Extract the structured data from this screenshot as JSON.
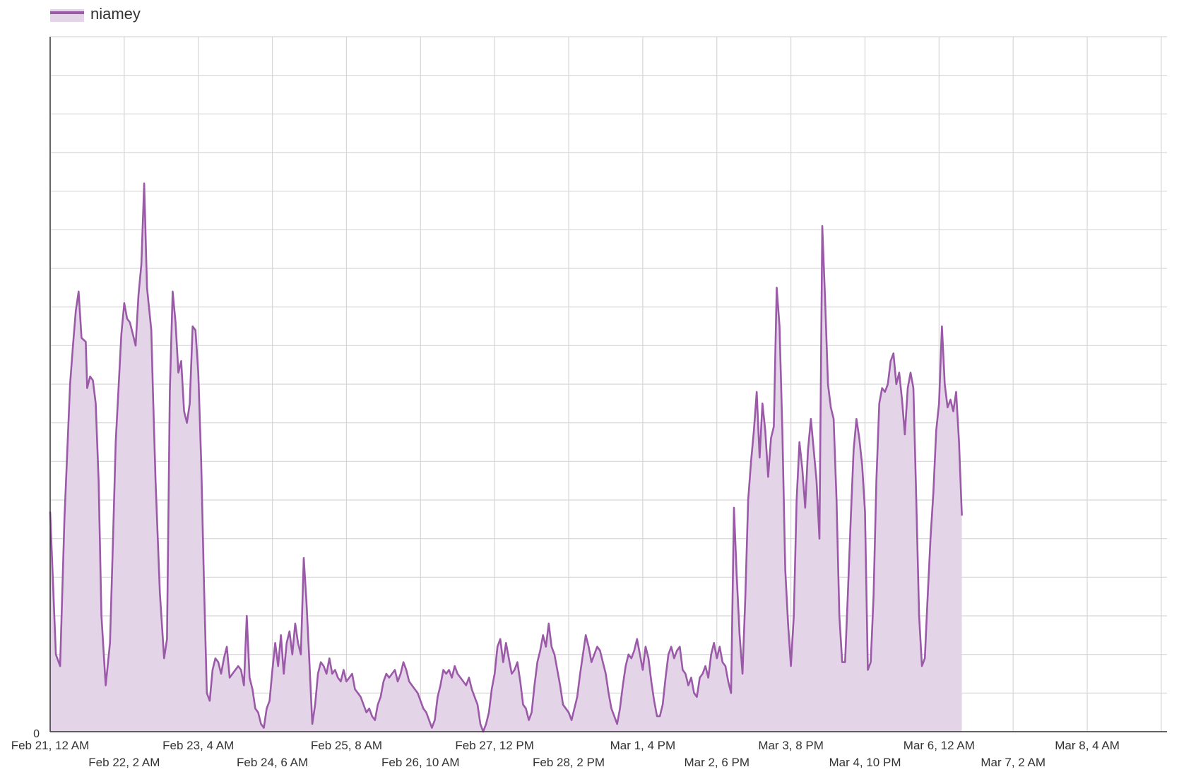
{
  "chart_data": {
    "type": "area",
    "title": "",
    "xlabel": "",
    "ylabel": "",
    "legend": {
      "placement": "top-left",
      "entries": [
        "niamey"
      ]
    },
    "y_tick_labels": [
      "0"
    ],
    "ylim": [
      0,
      18
    ],
    "grid": true,
    "x_tick_labels": [
      "Feb 21, 12 AM",
      "Feb 22, 2 AM",
      "Feb 23, 4 AM",
      "Feb 24, 6 AM",
      "Feb 25, 8 AM",
      "Feb 26, 10 AM",
      "Feb 27, 12 PM",
      "Feb 28, 2 PM",
      "Mar 1, 4 PM",
      "Mar 2, 6 PM",
      "Mar 3, 8 PM",
      "Mar 4, 10 PM",
      "Mar 6, 12 AM",
      "Mar 7, 2 AM",
      "Mar 8, 4 AM"
    ],
    "x_range_hours": [
      0,
      392
    ],
    "series": [
      {
        "name": "niamey",
        "color": "#9b5aa8",
        "fill": "#e3d4e8",
        "points": [
          [
            0,
            5.7
          ],
          [
            2,
            2.0
          ],
          [
            3.5,
            1.7
          ],
          [
            5,
            5.5
          ],
          [
            7,
            9.0
          ],
          [
            8,
            10.0
          ],
          [
            9,
            10.9
          ],
          [
            10,
            11.4
          ],
          [
            11,
            10.2
          ],
          [
            12.5,
            10.1
          ],
          [
            13,
            8.9
          ],
          [
            14,
            9.2
          ],
          [
            15,
            9.1
          ],
          [
            16,
            8.5
          ],
          [
            17,
            6.5
          ],
          [
            18,
            3.0
          ],
          [
            19.5,
            1.2
          ],
          [
            21,
            2.3
          ],
          [
            22,
            4.8
          ],
          [
            23,
            7.5
          ],
          [
            25,
            10.3
          ],
          [
            26,
            11.1
          ],
          [
            27,
            10.7
          ],
          [
            28,
            10.6
          ],
          [
            29,
            10.3
          ],
          [
            30,
            10.0
          ],
          [
            31,
            11.3
          ],
          [
            32,
            12.1
          ],
          [
            33,
            14.2
          ],
          [
            34,
            11.5
          ],
          [
            35.5,
            10.4
          ],
          [
            36,
            9.0
          ],
          [
            37,
            6.5
          ],
          [
            38.5,
            3.6
          ],
          [
            40,
            1.9
          ],
          [
            41,
            2.4
          ],
          [
            42,
            8.8
          ],
          [
            43,
            11.4
          ],
          [
            44,
            10.6
          ],
          [
            45,
            9.3
          ],
          [
            46,
            9.6
          ],
          [
            47,
            8.3
          ],
          [
            48,
            8.0
          ],
          [
            49,
            8.5
          ],
          [
            50,
            10.5
          ],
          [
            51,
            10.4
          ],
          [
            52,
            9.3
          ],
          [
            53,
            7.0
          ],
          [
            54,
            3.8
          ],
          [
            55,
            1.0
          ],
          [
            56,
            0.8
          ],
          [
            57,
            1.6
          ],
          [
            58,
            1.9
          ],
          [
            59,
            1.8
          ],
          [
            60,
            1.5
          ],
          [
            61,
            1.9
          ],
          [
            62,
            2.2
          ],
          [
            63,
            1.4
          ],
          [
            64,
            1.5
          ],
          [
            65,
            1.6
          ],
          [
            66,
            1.7
          ],
          [
            67,
            1.6
          ],
          [
            68,
            1.2
          ],
          [
            69,
            3.0
          ],
          [
            70,
            1.4
          ],
          [
            71,
            1.1
          ],
          [
            72,
            0.6
          ],
          [
            73,
            0.5
          ],
          [
            74,
            0.2
          ],
          [
            75,
            0.1
          ],
          [
            76,
            0.6
          ],
          [
            77,
            0.8
          ],
          [
            78,
            1.6
          ],
          [
            79,
            2.3
          ],
          [
            80,
            1.7
          ],
          [
            81,
            2.5
          ],
          [
            82,
            1.5
          ],
          [
            83,
            2.3
          ],
          [
            84,
            2.6
          ],
          [
            85,
            2.0
          ],
          [
            86,
            2.8
          ],
          [
            87,
            2.3
          ],
          [
            88,
            2.0
          ],
          [
            89,
            4.5
          ],
          [
            90,
            3.3
          ],
          [
            91,
            1.8
          ],
          [
            92,
            0.2
          ],
          [
            93,
            0.7
          ],
          [
            94,
            1.5
          ],
          [
            95,
            1.8
          ],
          [
            96,
            1.7
          ],
          [
            97,
            1.5
          ],
          [
            98,
            1.9
          ],
          [
            99,
            1.5
          ],
          [
            100,
            1.6
          ],
          [
            101,
            1.4
          ],
          [
            102,
            1.3
          ],
          [
            103,
            1.6
          ],
          [
            104,
            1.3
          ],
          [
            105,
            1.4
          ],
          [
            106,
            1.5
          ],
          [
            107,
            1.1
          ],
          [
            108,
            1.0
          ],
          [
            109,
            0.9
          ],
          [
            110,
            0.7
          ],
          [
            111,
            0.5
          ],
          [
            112,
            0.6
          ],
          [
            113,
            0.4
          ],
          [
            114,
            0.3
          ],
          [
            115,
            0.7
          ],
          [
            116,
            0.9
          ],
          [
            117,
            1.3
          ],
          [
            118,
            1.5
          ],
          [
            119,
            1.4
          ],
          [
            120,
            1.5
          ],
          [
            121,
            1.6
          ],
          [
            122,
            1.3
          ],
          [
            123,
            1.5
          ],
          [
            124,
            1.8
          ],
          [
            125,
            1.6
          ],
          [
            126,
            1.3
          ],
          [
            127,
            1.2
          ],
          [
            128,
            1.1
          ],
          [
            129,
            1.0
          ],
          [
            130,
            0.8
          ],
          [
            131,
            0.6
          ],
          [
            132,
            0.5
          ],
          [
            133,
            0.3
          ],
          [
            134,
            0.1
          ],
          [
            135,
            0.3
          ],
          [
            136,
            0.9
          ],
          [
            137,
            1.2
          ],
          [
            138,
            1.6
          ],
          [
            139,
            1.5
          ],
          [
            140,
            1.6
          ],
          [
            141,
            1.4
          ],
          [
            142,
            1.7
          ],
          [
            143,
            1.5
          ],
          [
            144,
            1.4
          ],
          [
            145,
            1.3
          ],
          [
            146,
            1.2
          ],
          [
            147,
            1.4
          ],
          [
            148,
            1.1
          ],
          [
            149,
            0.9
          ],
          [
            150,
            0.7
          ],
          [
            151,
            0.2
          ],
          [
            152,
            0.0
          ],
          [
            153,
            0.2
          ],
          [
            154,
            0.5
          ],
          [
            155,
            1.1
          ],
          [
            156,
            1.5
          ],
          [
            157,
            2.2
          ],
          [
            158,
            2.4
          ],
          [
            159,
            1.8
          ],
          [
            160,
            2.3
          ],
          [
            161,
            1.9
          ],
          [
            162,
            1.5
          ],
          [
            163,
            1.6
          ],
          [
            164,
            1.8
          ],
          [
            165,
            1.3
          ],
          [
            166,
            0.7
          ],
          [
            167,
            0.6
          ],
          [
            168,
            0.3
          ],
          [
            169,
            0.5
          ],
          [
            170,
            1.2
          ],
          [
            171,
            1.8
          ],
          [
            172,
            2.1
          ],
          [
            173,
            2.5
          ],
          [
            174,
            2.2
          ],
          [
            175,
            2.8
          ],
          [
            176,
            2.2
          ],
          [
            177,
            2.0
          ],
          [
            178,
            1.6
          ],
          [
            179,
            1.2
          ],
          [
            180,
            0.7
          ],
          [
            181,
            0.6
          ],
          [
            182,
            0.5
          ],
          [
            183,
            0.3
          ],
          [
            184,
            0.6
          ],
          [
            185,
            0.9
          ],
          [
            186,
            1.5
          ],
          [
            187,
            2.0
          ],
          [
            188,
            2.5
          ],
          [
            189,
            2.2
          ],
          [
            190,
            1.8
          ],
          [
            191,
            2.0
          ],
          [
            192,
            2.2
          ],
          [
            193,
            2.1
          ],
          [
            194,
            1.8
          ],
          [
            195,
            1.5
          ],
          [
            196,
            1.0
          ],
          [
            197,
            0.6
          ],
          [
            198,
            0.4
          ],
          [
            199,
            0.2
          ],
          [
            200,
            0.6
          ],
          [
            201,
            1.2
          ],
          [
            202,
            1.7
          ],
          [
            203,
            2.0
          ],
          [
            204,
            1.9
          ],
          [
            205,
            2.1
          ],
          [
            206,
            2.4
          ],
          [
            207,
            2.0
          ],
          [
            208,
            1.6
          ],
          [
            209,
            2.2
          ],
          [
            210,
            1.9
          ],
          [
            211,
            1.3
          ],
          [
            212,
            0.8
          ],
          [
            213,
            0.4
          ],
          [
            214,
            0.4
          ],
          [
            215,
            0.7
          ],
          [
            216,
            1.4
          ],
          [
            217,
            2.0
          ],
          [
            218,
            2.2
          ],
          [
            219,
            1.9
          ],
          [
            220,
            2.1
          ],
          [
            221,
            2.2
          ],
          [
            222,
            1.6
          ],
          [
            223,
            1.5
          ],
          [
            224,
            1.2
          ],
          [
            225,
            1.4
          ],
          [
            226,
            1.0
          ],
          [
            227,
            0.9
          ],
          [
            228,
            1.4
          ],
          [
            229,
            1.5
          ],
          [
            230,
            1.7
          ],
          [
            231,
            1.4
          ],
          [
            232,
            2.0
          ],
          [
            233,
            2.3
          ],
          [
            234,
            1.9
          ],
          [
            235,
            2.2
          ],
          [
            236,
            1.8
          ],
          [
            237,
            1.7
          ],
          [
            238,
            1.3
          ],
          [
            239,
            1.0
          ],
          [
            240,
            5.8
          ],
          [
            241,
            4.0
          ],
          [
            242,
            2.5
          ],
          [
            243,
            1.5
          ],
          [
            244,
            3.5
          ],
          [
            245,
            6.0
          ],
          [
            246,
            7.0
          ],
          [
            247,
            7.8
          ],
          [
            248,
            8.8
          ],
          [
            249,
            7.1
          ],
          [
            250,
            8.5
          ],
          [
            251,
            7.8
          ],
          [
            252,
            6.6
          ],
          [
            253,
            7.6
          ],
          [
            254,
            7.9
          ],
          [
            255,
            11.5
          ],
          [
            256,
            10.5
          ],
          [
            257,
            7.8
          ],
          [
            258,
            4.2
          ],
          [
            259,
            2.8
          ],
          [
            260,
            1.7
          ],
          [
            261,
            3.0
          ],
          [
            262,
            6.0
          ],
          [
            263,
            7.5
          ],
          [
            264,
            6.8
          ],
          [
            265,
            5.8
          ],
          [
            266,
            7.3
          ],
          [
            267,
            8.1
          ],
          [
            268,
            7.3
          ],
          [
            269,
            6.5
          ],
          [
            270,
            5.0
          ],
          [
            271,
            13.1
          ],
          [
            272,
            11.2
          ],
          [
            273,
            9.0
          ],
          [
            274,
            8.4
          ],
          [
            275,
            8.1
          ],
          [
            276,
            6.0
          ],
          [
            277,
            3.0
          ],
          [
            278,
            1.8
          ],
          [
            279,
            1.8
          ],
          [
            280,
            3.6
          ],
          [
            281,
            5.5
          ],
          [
            282,
            7.3
          ],
          [
            283,
            8.1
          ],
          [
            284,
            7.6
          ],
          [
            285,
            6.9
          ],
          [
            286,
            5.7
          ],
          [
            287,
            1.6
          ],
          [
            288,
            1.8
          ],
          [
            289,
            3.5
          ],
          [
            290,
            6.5
          ],
          [
            291,
            8.5
          ],
          [
            292,
            8.9
          ],
          [
            293,
            8.8
          ],
          [
            294,
            9.0
          ],
          [
            295,
            9.6
          ],
          [
            296,
            9.8
          ],
          [
            297,
            9.0
          ],
          [
            298,
            9.3
          ],
          [
            299,
            8.6
          ],
          [
            300,
            7.7
          ],
          [
            301,
            8.9
          ],
          [
            302,
            9.3
          ],
          [
            303,
            8.9
          ],
          [
            304,
            6.0
          ],
          [
            305,
            3.0
          ],
          [
            306,
            1.7
          ],
          [
            307,
            1.9
          ],
          [
            308,
            3.5
          ],
          [
            309,
            5.0
          ],
          [
            310,
            6.2
          ],
          [
            311,
            7.8
          ],
          [
            312,
            8.5
          ],
          [
            313,
            10.5
          ],
          [
            314,
            9.0
          ],
          [
            315,
            8.4
          ],
          [
            316,
            8.6
          ],
          [
            317,
            8.3
          ],
          [
            318,
            8.8
          ],
          [
            319,
            7.5
          ],
          [
            320,
            5.6
          ]
        ]
      }
    ]
  }
}
